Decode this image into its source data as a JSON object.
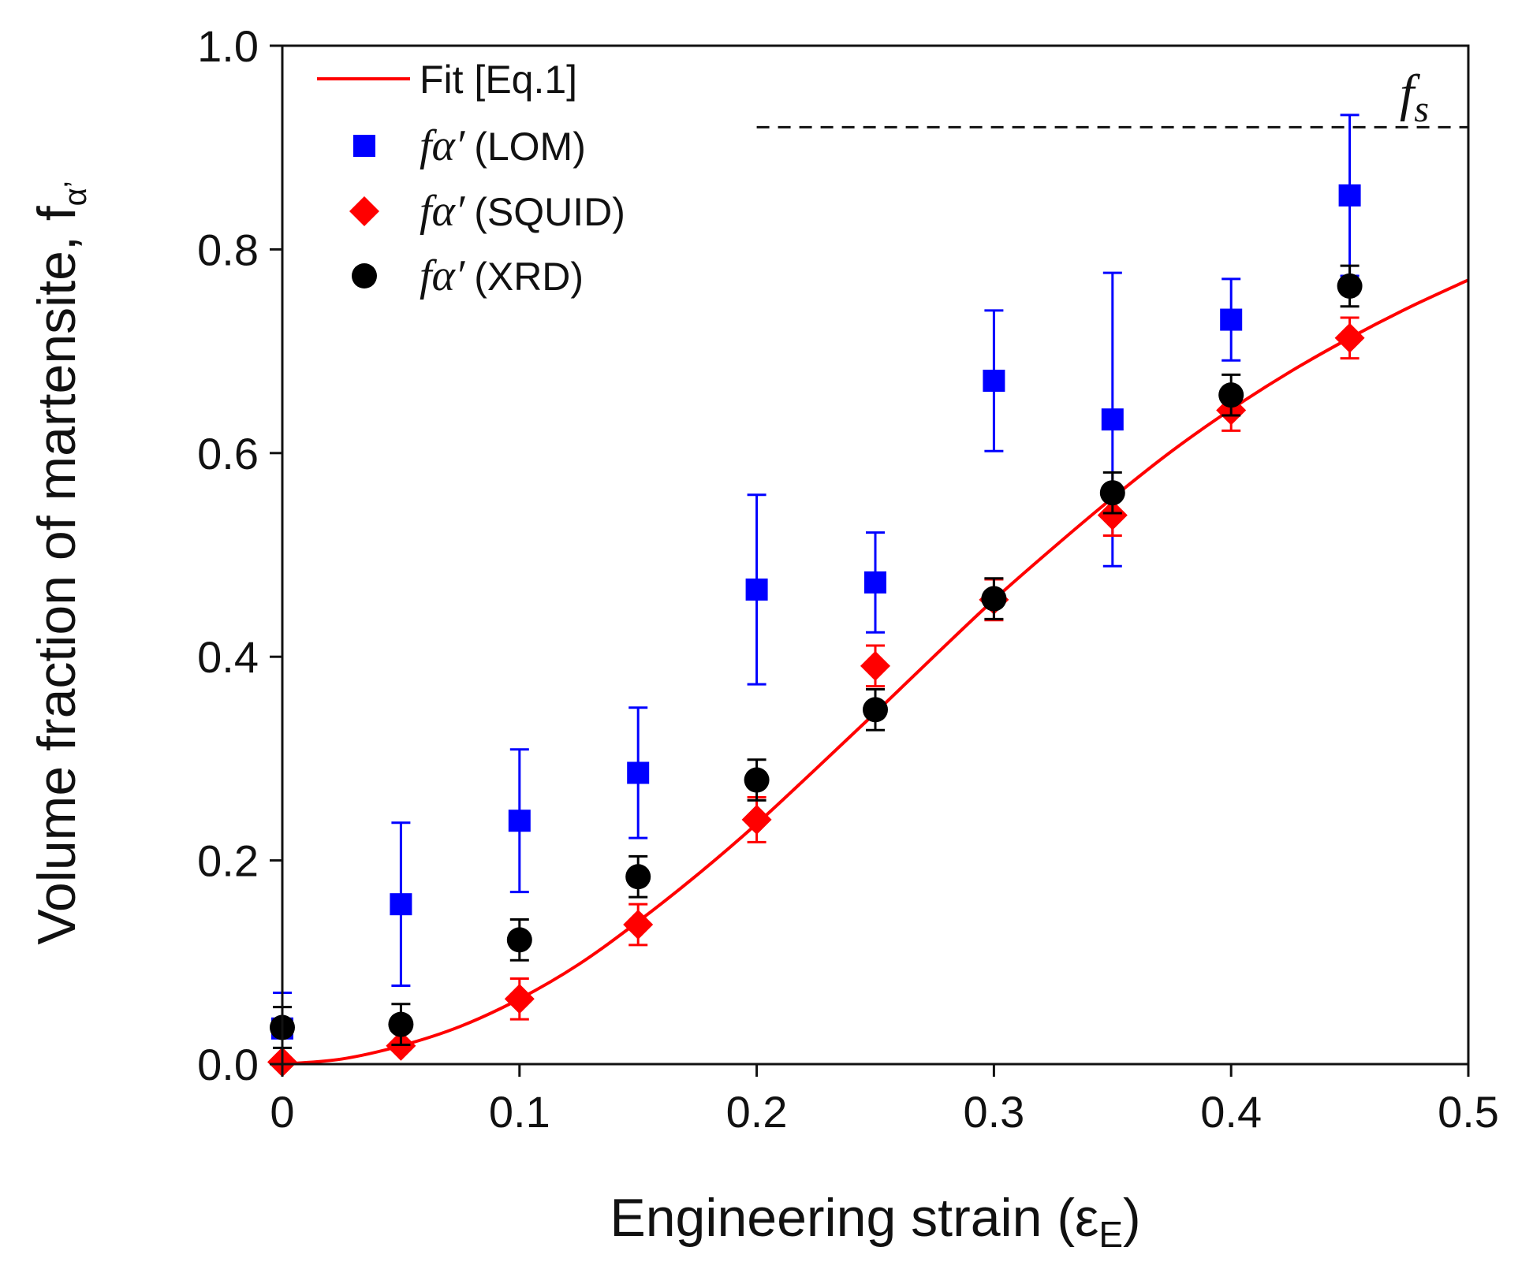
{
  "chart_data": {
    "type": "scatter",
    "title": "",
    "xlabel": "Engineering strain (ε",
    "xlabel_sub": "E",
    "xlabel_close": ")",
    "ylabel": "Volume fraction of martensite, f",
    "ylabel_sub": "α’",
    "xlim": [
      0,
      0.5
    ],
    "ylim": [
      0,
      1.0
    ],
    "x_ticks": [
      0,
      0.1,
      0.2,
      0.3,
      0.4,
      0.5
    ],
    "x_tick_labels": [
      "0",
      "0.1",
      "0.2",
      "0.3",
      "0.4",
      "0.5"
    ],
    "y_ticks": [
      0.0,
      0.2,
      0.4,
      0.6,
      0.8,
      1.0
    ],
    "y_tick_labels": [
      "0.0",
      "0.2",
      "0.4",
      "0.6",
      "0.8",
      "1.0"
    ],
    "legend_position": "top-left",
    "saturation_line": {
      "label": "f",
      "label_sub": "s",
      "y": 0.92,
      "x_range": [
        0.2,
        0.5
      ]
    },
    "fit": {
      "name": "Fit [Eq.1]",
      "color": "#ff0000",
      "x": [
        0,
        0.025,
        0.05,
        0.075,
        0.1,
        0.125,
        0.15,
        0.175,
        0.2,
        0.225,
        0.25,
        0.275,
        0.3,
        0.325,
        0.35,
        0.375,
        0.4,
        0.425,
        0.45,
        0.475,
        0.5
      ],
      "y": [
        0,
        0.005,
        0.018,
        0.037,
        0.064,
        0.098,
        0.14,
        0.186,
        0.236,
        0.29,
        0.345,
        0.401,
        0.456,
        0.507,
        0.556,
        0.602,
        0.643,
        0.68,
        0.713,
        0.743,
        0.77
      ]
    },
    "series": [
      {
        "name": "(LOM)",
        "symbol": "fα′",
        "marker": "square",
        "color": "#0000ff",
        "x": [
          0,
          0.05,
          0.1,
          0.15,
          0.2,
          0.25,
          0.3,
          0.35,
          0.4,
          0.45
        ],
        "y": [
          0.035,
          0.157,
          0.239,
          0.286,
          0.466,
          0.473,
          0.671,
          0.633,
          0.731,
          0.853
        ],
        "err": [
          0.035,
          0.08,
          0.07,
          0.064,
          0.093,
          0.049,
          0.069,
          0.144,
          0.04,
          0.079
        ]
      },
      {
        "name": "(SQUID)",
        "symbol": "fα′",
        "marker": "diamond",
        "color": "#ff0000",
        "x": [
          0,
          0.05,
          0.1,
          0.15,
          0.2,
          0.25,
          0.3,
          0.35,
          0.4,
          0.45
        ],
        "y": [
          0.002,
          0.018,
          0.064,
          0.137,
          0.24,
          0.391,
          0.456,
          0.539,
          0.642,
          0.713
        ],
        "err": [
          0,
          0,
          0.02,
          0.02,
          0.022,
          0.02,
          0.02,
          0.02,
          0.02,
          0.02
        ]
      },
      {
        "name": "(XRD)",
        "symbol": "fα′",
        "marker": "circle",
        "color": "#000000",
        "x": [
          0,
          0.05,
          0.1,
          0.15,
          0.2,
          0.25,
          0.3,
          0.35,
          0.4,
          0.45
        ],
        "y": [
          0.036,
          0.039,
          0.122,
          0.184,
          0.279,
          0.348,
          0.457,
          0.561,
          0.657,
          0.764
        ],
        "err": [
          0.02,
          0.02,
          0.02,
          0.02,
          0.02,
          0.02,
          0.02,
          0.02,
          0.02,
          0.02
        ]
      }
    ]
  }
}
